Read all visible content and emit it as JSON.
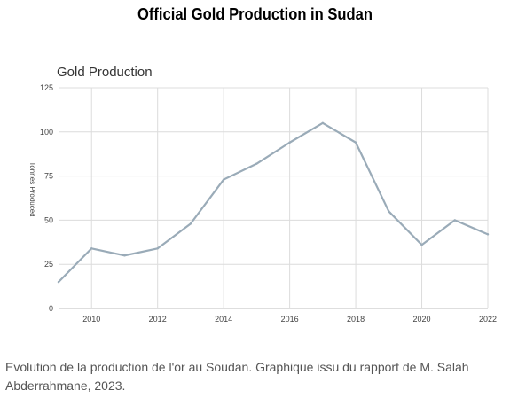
{
  "page": {
    "title": "Official Gold Production in Sudan",
    "caption": "Evolution de la production de l'or au Soudan. Graphique issu du rapport de M. Salah Abderrahmane, 2023."
  },
  "colors": {
    "line": "#9aabb8",
    "grid": "#dcdcdc",
    "axis_text": "#444444",
    "title_text": "#333333"
  },
  "chart_data": {
    "type": "line",
    "title": "Gold Production",
    "xlabel": "",
    "ylabel": "Tonnes Produced",
    "xlim": [
      2009,
      2022
    ],
    "ylim": [
      0,
      125
    ],
    "x_ticks": [
      2010,
      2012,
      2014,
      2016,
      2018,
      2020,
      2022
    ],
    "y_ticks": [
      0,
      25,
      50,
      75,
      100,
      125
    ],
    "grid": true,
    "legend": "none",
    "series": [
      {
        "x": [
          2009,
          2010,
          2011,
          2012,
          2013,
          2014,
          2015,
          2016,
          2017,
          2018,
          2019,
          2020,
          2021,
          2022
        ],
        "values": [
          15,
          34,
          30,
          34,
          48,
          73,
          82,
          94,
          105,
          94,
          55,
          36,
          50,
          42
        ]
      }
    ]
  }
}
